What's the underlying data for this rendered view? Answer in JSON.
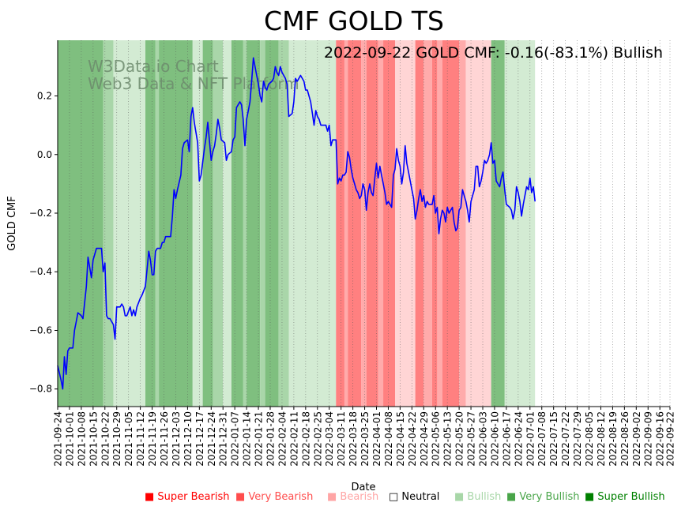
{
  "chart_data": {
    "type": "line",
    "title": "CMF GOLD TS",
    "subtitle": "2022-09-22 GOLD CMF: -0.16(-83.1%) Bullish",
    "watermark": [
      "W3Data.io Chart",
      "Web3 Data & NFT Platform"
    ],
    "xlabel": "Date",
    "ylabel": "GOLD CMF",
    "ylim": [
      -0.86,
      0.39
    ],
    "yticks": [
      -0.8,
      -0.6,
      -0.4,
      -0.2,
      0.0,
      0.2
    ],
    "ytick_labels": [
      "−0.8",
      "−0.6",
      "−0.4",
      "−0.2",
      "0.0",
      "0.2"
    ],
    "x_start": "2021-09-24",
    "x_end": "2022-09-22",
    "xtick_labels": [
      "2021-09-24",
      "2021-10-01",
      "2021-10-08",
      "2021-10-15",
      "2021-10-22",
      "2021-10-29",
      "2021-11-05",
      "2021-11-12",
      "2021-11-19",
      "2021-11-26",
      "2021-12-03",
      "2021-12-10",
      "2021-12-17",
      "2021-12-24",
      "2021-12-31",
      "2022-01-07",
      "2022-01-14",
      "2022-01-21",
      "2022-01-28",
      "2022-02-04",
      "2022-02-11",
      "2022-02-18",
      "2022-02-25",
      "2022-03-04",
      "2022-03-11",
      "2022-03-18",
      "2022-03-25",
      "2022-04-01",
      "2022-04-08",
      "2022-04-15",
      "2022-04-22",
      "2022-04-29",
      "2022-05-06",
      "2022-05-13",
      "2022-05-20",
      "2022-05-27",
      "2022-06-03",
      "2022-06-10",
      "2022-06-17",
      "2022-06-24",
      "2022-07-01",
      "2022-07-08",
      "2022-07-15",
      "2022-07-22",
      "2022-07-29",
      "2022-08-05",
      "2022-08-12",
      "2022-08-19",
      "2022-08-26",
      "2022-09-02",
      "2022-09-09",
      "2022-09-16",
      "2022-09-22"
    ],
    "series": [
      {
        "name": "GOLD CMF",
        "color": "#0000ff",
        "points": [
          [
            0,
            -0.72
          ],
          [
            2,
            -0.77
          ],
          [
            3,
            -0.8
          ],
          [
            4,
            -0.69
          ],
          [
            5,
            -0.75
          ],
          [
            6,
            -0.67
          ],
          [
            7,
            -0.66
          ],
          [
            9,
            -0.66
          ],
          [
            10,
            -0.6
          ],
          [
            11,
            -0.57
          ],
          [
            12,
            -0.54
          ],
          [
            14,
            -0.55
          ],
          [
            15,
            -0.56
          ],
          [
            17,
            -0.45
          ],
          [
            18,
            -0.35
          ],
          [
            20,
            -0.42
          ],
          [
            21,
            -0.36
          ],
          [
            23,
            -0.32
          ],
          [
            26,
            -0.32
          ],
          [
            27,
            -0.4
          ],
          [
            28,
            -0.37
          ],
          [
            29,
            -0.55
          ],
          [
            30,
            -0.56
          ],
          [
            31,
            -0.56
          ],
          [
            33,
            -0.58
          ],
          [
            34,
            -0.63
          ],
          [
            35,
            -0.52
          ],
          [
            37,
            -0.52
          ],
          [
            38,
            -0.51
          ],
          [
            39,
            -0.52
          ],
          [
            40,
            -0.55
          ],
          [
            41,
            -0.55
          ],
          [
            43,
            -0.52
          ],
          [
            44,
            -0.55
          ],
          [
            45,
            -0.53
          ],
          [
            46,
            -0.55
          ],
          [
            47,
            -0.52
          ],
          [
            49,
            -0.49
          ],
          [
            50,
            -0.48
          ],
          [
            52,
            -0.45
          ],
          [
            53,
            -0.39
          ],
          [
            54,
            -0.33
          ],
          [
            55,
            -0.36
          ],
          [
            56,
            -0.41
          ],
          [
            57,
            -0.41
          ],
          [
            58,
            -0.33
          ],
          [
            59,
            -0.32
          ],
          [
            61,
            -0.32
          ],
          [
            62,
            -0.3
          ],
          [
            63,
            -0.3
          ],
          [
            64,
            -0.28
          ],
          [
            66,
            -0.28
          ],
          [
            67,
            -0.28
          ],
          [
            68,
            -0.21
          ],
          [
            69,
            -0.12
          ],
          [
            70,
            -0.15
          ],
          [
            71,
            -0.12
          ],
          [
            73,
            -0.07
          ],
          [
            74,
            0.02
          ],
          [
            75,
            0.04
          ],
          [
            77,
            0.05
          ],
          [
            78,
            0.01
          ],
          [
            79,
            0.13
          ],
          [
            80,
            0.16
          ],
          [
            81,
            0.11
          ],
          [
            83,
            0.04
          ],
          [
            84,
            -0.09
          ],
          [
            85,
            -0.07
          ],
          [
            87,
            0.02
          ],
          [
            88,
            0.06
          ],
          [
            89,
            0.11
          ],
          [
            91,
            -0.02
          ],
          [
            92,
            0.01
          ],
          [
            93,
            0.03
          ],
          [
            94,
            0.07
          ],
          [
            95,
            0.12
          ],
          [
            96,
            0.09
          ],
          [
            97,
            0.05
          ],
          [
            99,
            0.04
          ],
          [
            100,
            -0.02
          ],
          [
            101,
            0.0
          ],
          [
            103,
            0.01
          ],
          [
            104,
            0.05
          ],
          [
            105,
            0.06
          ],
          [
            106,
            0.16
          ],
          [
            107,
            0.17
          ],
          [
            108,
            0.18
          ],
          [
            109,
            0.17
          ],
          [
            110,
            0.12
          ],
          [
            111,
            0.03
          ],
          [
            112,
            0.12
          ],
          [
            113,
            0.15
          ],
          [
            114,
            0.18
          ],
          [
            115,
            0.25
          ],
          [
            116,
            0.33
          ],
          [
            117,
            0.3
          ],
          [
            118,
            0.27
          ],
          [
            119,
            0.24
          ],
          [
            120,
            0.2
          ],
          [
            121,
            0.18
          ],
          [
            122,
            0.25
          ],
          [
            123,
            0.23
          ],
          [
            124,
            0.22
          ],
          [
            125,
            0.24
          ],
          [
            127,
            0.25
          ],
          [
            128,
            0.26
          ],
          [
            129,
            0.3
          ],
          [
            130,
            0.28
          ],
          [
            131,
            0.27
          ],
          [
            132,
            0.3
          ],
          [
            133,
            0.28
          ],
          [
            134,
            0.27
          ],
          [
            135,
            0.26
          ],
          [
            136,
            0.24
          ],
          [
            137,
            0.13
          ],
          [
            139,
            0.14
          ],
          [
            140,
            0.18
          ],
          [
            141,
            0.26
          ],
          [
            142,
            0.25
          ],
          [
            143,
            0.26
          ],
          [
            144,
            0.27
          ],
          [
            146,
            0.25
          ],
          [
            147,
            0.22
          ],
          [
            148,
            0.22
          ],
          [
            150,
            0.18
          ],
          [
            151,
            0.14
          ],
          [
            152,
            0.1
          ],
          [
            153,
            0.15
          ],
          [
            154,
            0.13
          ],
          [
            155,
            0.12
          ],
          [
            156,
            0.1
          ],
          [
            158,
            0.1
          ],
          [
            159,
            0.1
          ],
          [
            160,
            0.08
          ],
          [
            161,
            0.1
          ],
          [
            162,
            0.03
          ],
          [
            163,
            0.05
          ],
          [
            165,
            0.05
          ],
          [
            166,
            -0.1
          ],
          [
            167,
            -0.08
          ],
          [
            168,
            -0.09
          ],
          [
            169,
            -0.07
          ],
          [
            170,
            -0.07
          ],
          [
            171,
            -0.06
          ],
          [
            172,
            0.01
          ],
          [
            173,
            -0.01
          ],
          [
            174,
            -0.05
          ],
          [
            175,
            -0.08
          ],
          [
            176,
            -0.1
          ],
          [
            177,
            -0.12
          ],
          [
            178,
            -0.13
          ],
          [
            179,
            -0.15
          ],
          [
            180,
            -0.14
          ],
          [
            181,
            -0.1
          ],
          [
            182,
            -0.12
          ],
          [
            183,
            -0.19
          ],
          [
            184,
            -0.13
          ],
          [
            185,
            -0.1
          ],
          [
            186,
            -0.13
          ],
          [
            187,
            -0.14
          ],
          [
            188,
            -0.08
          ],
          [
            189,
            -0.03
          ],
          [
            190,
            -0.08
          ],
          [
            191,
            -0.04
          ],
          [
            192,
            -0.07
          ],
          [
            193,
            -0.1
          ],
          [
            194,
            -0.13
          ],
          [
            195,
            -0.17
          ],
          [
            196,
            -0.16
          ],
          [
            197,
            -0.17
          ],
          [
            198,
            -0.18
          ],
          [
            199,
            -0.07
          ],
          [
            200,
            -0.05
          ],
          [
            201,
            0.02
          ],
          [
            202,
            -0.02
          ],
          [
            203,
            -0.04
          ],
          [
            204,
            -0.1
          ],
          [
            205,
            -0.06
          ],
          [
            206,
            0.03
          ],
          [
            207,
            -0.03
          ],
          [
            208,
            -0.06
          ],
          [
            210,
            -0.12
          ],
          [
            211,
            -0.15
          ],
          [
            212,
            -0.22
          ],
          [
            213,
            -0.19
          ],
          [
            214,
            -0.15
          ],
          [
            215,
            -0.12
          ],
          [
            216,
            -0.16
          ],
          [
            217,
            -0.14
          ],
          [
            218,
            -0.18
          ],
          [
            219,
            -0.16
          ],
          [
            220,
            -0.17
          ],
          [
            221,
            -0.17
          ],
          [
            222,
            -0.17
          ],
          [
            223,
            -0.14
          ],
          [
            224,
            -0.2
          ],
          [
            225,
            -0.18
          ],
          [
            226,
            -0.27
          ],
          [
            227,
            -0.22
          ],
          [
            228,
            -0.19
          ],
          [
            229,
            -0.2
          ],
          [
            230,
            -0.23
          ],
          [
            231,
            -0.18
          ],
          [
            232,
            -0.2
          ],
          [
            234,
            -0.18
          ],
          [
            235,
            -0.23
          ],
          [
            236,
            -0.26
          ],
          [
            237,
            -0.25
          ],
          [
            238,
            -0.19
          ],
          [
            239,
            -0.18
          ],
          [
            240,
            -0.12
          ],
          [
            241,
            -0.14
          ],
          [
            242,
            -0.16
          ],
          [
            243,
            -0.19
          ],
          [
            244,
            -0.23
          ],
          [
            245,
            -0.16
          ],
          [
            246,
            -0.14
          ],
          [
            247,
            -0.12
          ],
          [
            248,
            -0.04
          ],
          [
            249,
            -0.04
          ],
          [
            250,
            -0.11
          ],
          [
            251,
            -0.09
          ],
          [
            252,
            -0.06
          ],
          [
            253,
            -0.02
          ],
          [
            254,
            -0.03
          ],
          [
            255,
            -0.02
          ],
          [
            256,
            0.0
          ],
          [
            257,
            0.04
          ],
          [
            258,
            -0.03
          ],
          [
            259,
            -0.02
          ],
          [
            260,
            -0.09
          ],
          [
            261,
            -0.1
          ],
          [
            262,
            -0.11
          ],
          [
            263,
            -0.08
          ],
          [
            264,
            -0.06
          ],
          [
            265,
            -0.12
          ],
          [
            266,
            -0.17
          ],
          [
            268,
            -0.18
          ],
          [
            269,
            -0.19
          ],
          [
            270,
            -0.22
          ],
          [
            271,
            -0.19
          ],
          [
            272,
            -0.11
          ],
          [
            273,
            -0.13
          ],
          [
            274,
            -0.16
          ],
          [
            275,
            -0.21
          ],
          [
            276,
            -0.17
          ],
          [
            277,
            -0.14
          ],
          [
            278,
            -0.11
          ],
          [
            279,
            -0.12
          ],
          [
            280,
            -0.08
          ],
          [
            281,
            -0.13
          ],
          [
            282,
            -0.11
          ],
          [
            283,
            -0.16
          ]
        ]
      }
    ],
    "regime_colors": {
      "super_bearish": "#ff0000",
      "very_bearish": "#ff4d4d",
      "bearish": "#ffa5a5",
      "neutral": "#ffffff",
      "bullish": "#a8d7a8",
      "very_bullish": "#49a549",
      "super_bullish": "#008000"
    },
    "regime_bands": [
      [
        0,
        27,
        "very_bullish"
      ],
      [
        27,
        33,
        "bullish"
      ],
      [
        33,
        52,
        "bullish_light"
      ],
      [
        52,
        58,
        "very_bullish"
      ],
      [
        58,
        60,
        "bullish"
      ],
      [
        60,
        80,
        "very_bullish"
      ],
      [
        80,
        86,
        "bullish_light"
      ],
      [
        86,
        92,
        "very_bullish"
      ],
      [
        92,
        98,
        "bullish"
      ],
      [
        98,
        103,
        "bullish_light"
      ],
      [
        103,
        110,
        "very_bullish"
      ],
      [
        110,
        112,
        "bullish"
      ],
      [
        112,
        120,
        "very_bullish"
      ],
      [
        120,
        123,
        "bullish"
      ],
      [
        123,
        131,
        "very_bullish"
      ],
      [
        131,
        137,
        "bullish"
      ],
      [
        137,
        165,
        "bullish_light"
      ],
      [
        165,
        170,
        "very_bearish"
      ],
      [
        170,
        172,
        "bearish"
      ],
      [
        172,
        180,
        "very_bearish"
      ],
      [
        180,
        183,
        "bearish"
      ],
      [
        183,
        190,
        "very_bearish"
      ],
      [
        190,
        193,
        "bearish"
      ],
      [
        193,
        200,
        "very_bearish"
      ],
      [
        200,
        212,
        "bearish_light"
      ],
      [
        212,
        217,
        "very_bearish"
      ],
      [
        217,
        222,
        "bearish"
      ],
      [
        222,
        225,
        "very_bearish"
      ],
      [
        225,
        228,
        "bearish"
      ],
      [
        228,
        238,
        "very_bearish"
      ],
      [
        238,
        242,
        "bearish"
      ],
      [
        242,
        257,
        "bearish_light"
      ],
      [
        257,
        265,
        "very_bullish"
      ],
      [
        265,
        283,
        "bullish_light"
      ]
    ],
    "legend": [
      {
        "label": "Super Bearish",
        "marker": "■",
        "color": "#ff0000"
      },
      {
        "label": "Very Bearish",
        "marker": "■",
        "color": "#ff4d4d"
      },
      {
        "label": "Bearish",
        "marker": "■",
        "color": "#ffa5a5"
      },
      {
        "label": "Neutral",
        "marker": "□",
        "color": "#000000"
      },
      {
        "label": "Bullish",
        "marker": "■",
        "color": "#a8d7a8"
      },
      {
        "label": "Very Bullish",
        "marker": "■",
        "color": "#49a549"
      },
      {
        "label": "Super Bullish",
        "marker": "■",
        "color": "#008000"
      }
    ],
    "legend_placement": "bottom"
  }
}
